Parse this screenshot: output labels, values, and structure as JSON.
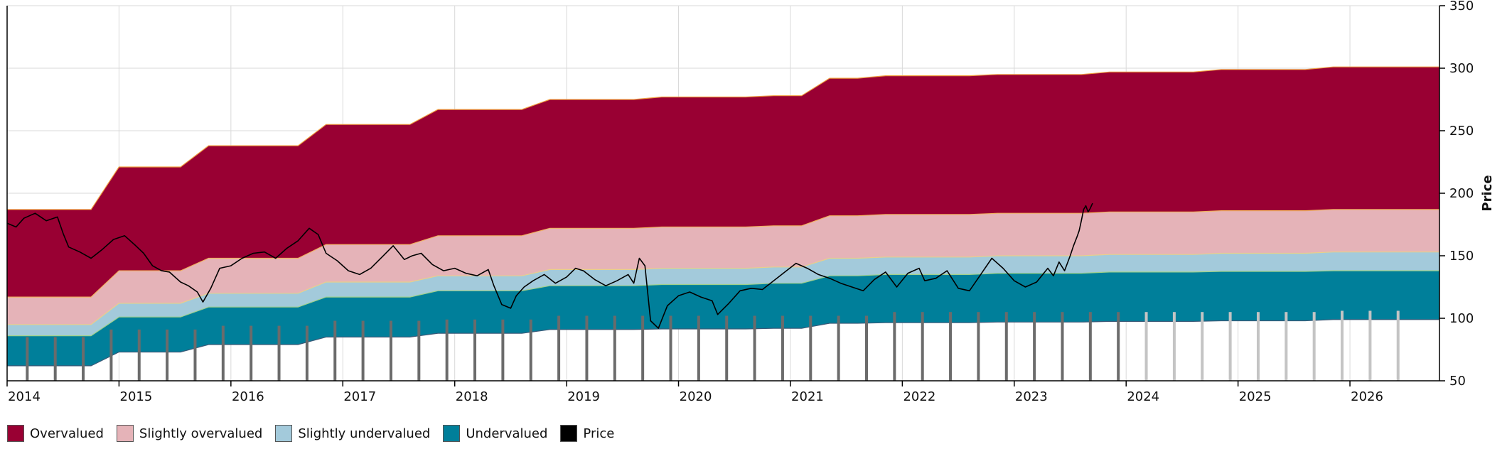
{
  "chart_data": {
    "type": "area",
    "title": "",
    "xlabel": "",
    "ylabel": "Price",
    "ylim": [
      50,
      350
    ],
    "xlim": [
      2014.0,
      2026.8
    ],
    "yticks": [
      50,
      100,
      150,
      200,
      250,
      300,
      350
    ],
    "x_tick_labels": [
      "2014",
      "2015",
      "2016",
      "2017",
      "2018",
      "2019",
      "2020",
      "2021",
      "2022",
      "2023",
      "2024",
      "2025",
      "2026"
    ],
    "x_tick_values": [
      2014.12,
      2015.12,
      2016.12,
      2017.12,
      2018.12,
      2019.12,
      2020.12,
      2021.12,
      2022.12,
      2023.12,
      2024.12,
      2025.12,
      2026.12
    ],
    "colors": {
      "overvalued": "#990033",
      "slightly_overvalued": "#e5b3b8",
      "slightly_undervalued": "#a3cadb",
      "undervalued": "#007f9a",
      "price": "#000000",
      "bar_actual": "#6b6b6b",
      "bar_forecast": "#c4c4c4"
    },
    "band_x": [
      2014.0,
      2014.75,
      2015.0,
      2015.55,
      2015.8,
      2016.6,
      2016.85,
      2017.6,
      2017.85,
      2018.6,
      2018.85,
      2019.6,
      2019.85,
      2020.6,
      2020.85,
      2021.1,
      2021.35,
      2021.6,
      2021.85,
      2022.6,
      2022.85,
      2023.6,
      2023.85,
      2024.6,
      2024.85,
      2025.6,
      2025.85,
      2026.8
    ],
    "series": [
      {
        "name": "Undervalued lower bound",
        "values": [
          62,
          62,
          73,
          73,
          79,
          79,
          85,
          85,
          88,
          88,
          91,
          91,
          91.5,
          91.5,
          92,
          92,
          96,
          96,
          96.5,
          96.5,
          97,
          97,
          97.5,
          97.5,
          98,
          98,
          99,
          99
        ]
      },
      {
        "name": "Undervalued / Slightly undervalued",
        "values": [
          86,
          86,
          101,
          101,
          109,
          109,
          117,
          117,
          122,
          122,
          126,
          126,
          127,
          127,
          128,
          128,
          134,
          134,
          135,
          135,
          136,
          136,
          137,
          137,
          137.5,
          137.5,
          138,
          138
        ]
      },
      {
        "name": "Slightly undervalued / Slightly overvalued",
        "values": [
          95,
          95,
          112,
          112,
          120,
          120,
          129,
          129,
          134,
          134,
          139,
          139,
          140,
          140,
          141,
          141,
          148,
          148,
          149,
          149,
          150,
          150,
          151,
          151,
          152,
          152,
          153,
          153
        ]
      },
      {
        "name": "Slightly overvalued / Overvalued",
        "values": [
          117,
          117,
          138,
          138,
          148,
          148,
          159,
          159,
          166,
          166,
          172,
          172,
          173,
          173,
          174,
          174,
          182,
          182,
          183,
          183,
          184,
          184,
          185,
          185,
          186,
          186,
          187,
          187
        ]
      },
      {
        "name": "Overvalued upper bound",
        "values": [
          187,
          187,
          221,
          221,
          238,
          238,
          255,
          255,
          267,
          267,
          275,
          275,
          277,
          277,
          278,
          278,
          292,
          292,
          294,
          294,
          295,
          295,
          297,
          297,
          299,
          299,
          301,
          301
        ]
      }
    ],
    "price": {
      "x": [
        2014.0,
        2014.08,
        2014.15,
        2014.25,
        2014.35,
        2014.45,
        2014.5,
        2014.55,
        2014.65,
        2014.75,
        2014.85,
        2014.95,
        2015.05,
        2015.15,
        2015.22,
        2015.3,
        2015.38,
        2015.45,
        2015.55,
        2015.62,
        2015.7,
        2015.75,
        2015.82,
        2015.9,
        2016.0,
        2016.1,
        2016.2,
        2016.3,
        2016.4,
        2016.5,
        2016.6,
        2016.7,
        2016.78,
        2016.85,
        2016.95,
        2017.05,
        2017.15,
        2017.25,
        2017.35,
        2017.45,
        2017.55,
        2017.62,
        2017.7,
        2017.8,
        2017.9,
        2018.0,
        2018.1,
        2018.2,
        2018.3,
        2018.35,
        2018.42,
        2018.5,
        2018.55,
        2018.62,
        2018.7,
        2018.8,
        2018.9,
        2019.0,
        2019.08,
        2019.15,
        2019.25,
        2019.35,
        2019.45,
        2019.55,
        2019.6,
        2019.65,
        2019.7,
        2019.75,
        2019.82,
        2019.9,
        2020.0,
        2020.1,
        2020.2,
        2020.3,
        2020.35,
        2020.45,
        2020.55,
        2020.65,
        2020.75,
        2020.85,
        2020.95,
        2021.05,
        2021.15,
        2021.25,
        2021.35,
        2021.45,
        2021.55,
        2021.65,
        2021.75,
        2021.85,
        2021.95,
        2022.05,
        2022.15,
        2022.2,
        2022.3,
        2022.4,
        2022.5,
        2022.6,
        2022.7,
        2022.8,
        2022.9,
        2023.0,
        2023.1,
        2023.2,
        2023.3,
        2023.35,
        2023.4,
        2023.45,
        2023.5,
        2023.53,
        2023.56,
        2023.58,
        2023.6,
        2023.62,
        2023.64,
        2023.66,
        2023.68,
        2023.7
      ],
      "values": [
        176,
        173,
        180,
        184,
        178,
        181,
        168,
        157,
        153,
        148,
        155,
        163,
        166,
        158,
        152,
        142,
        138,
        137,
        129,
        126,
        121,
        113,
        124,
        140,
        142,
        148,
        152,
        153,
        148,
        156,
        162,
        172,
        167,
        152,
        146,
        138,
        135,
        140,
        149,
        158,
        147,
        150,
        152,
        143,
        138,
        140,
        136,
        134,
        139,
        126,
        111,
        108,
        118,
        125,
        130,
        135,
        128,
        133,
        140,
        138,
        131,
        126,
        130,
        135,
        128,
        148,
        142,
        98,
        92,
        110,
        118,
        121,
        117,
        114,
        103,
        112,
        122,
        124,
        123,
        130,
        137,
        144,
        140,
        135,
        132,
        128,
        125,
        122,
        131,
        137,
        125,
        136,
        140,
        130,
        132,
        138,
        124,
        122,
        135,
        148,
        140,
        130,
        125,
        129,
        140,
        134,
        145,
        138,
        150,
        158,
        165,
        170,
        178,
        187,
        190,
        185,
        188,
        192
      ]
    },
    "bars": {
      "x": [
        2014.18,
        2014.43,
        2014.68,
        2014.93,
        2015.18,
        2015.43,
        2015.68,
        2015.93,
        2016.18,
        2016.43,
        2016.68,
        2016.93,
        2017.18,
        2017.43,
        2017.68,
        2017.93,
        2018.18,
        2018.43,
        2018.68,
        2018.93,
        2019.18,
        2019.43,
        2019.68,
        2019.93,
        2020.18,
        2020.43,
        2020.68,
        2020.93,
        2021.18,
        2021.43,
        2021.68,
        2021.93,
        2022.18,
        2022.43,
        2022.68,
        2022.93,
        2023.18,
        2023.43,
        2023.68,
        2023.93,
        2024.18,
        2024.43,
        2024.68,
        2024.93,
        2025.18,
        2025.43,
        2025.68,
        2025.93,
        2026.18,
        2026.43
      ],
      "values": [
        85,
        85,
        85,
        91,
        91,
        91,
        91,
        94,
        94,
        94,
        94,
        98,
        98,
        98,
        98,
        99,
        99,
        99,
        99,
        102,
        102,
        102,
        102,
        102,
        102,
        102,
        102,
        102,
        102,
        102,
        102,
        105,
        105,
        105,
        105,
        105,
        105,
        105,
        105,
        105,
        105,
        105,
        105,
        105,
        105,
        105,
        105,
        106,
        106,
        106
      ],
      "forecast_from": 2024.0
    },
    "legend": [
      {
        "label": "Overvalued",
        "color": "#990033"
      },
      {
        "label": "Slightly overvalued",
        "color": "#e5b3b8"
      },
      {
        "label": "Slightly undervalued",
        "color": "#a3cadb"
      },
      {
        "label": "Undervalued",
        "color": "#007f9a"
      },
      {
        "label": "Price",
        "color": "#000000"
      }
    ]
  }
}
